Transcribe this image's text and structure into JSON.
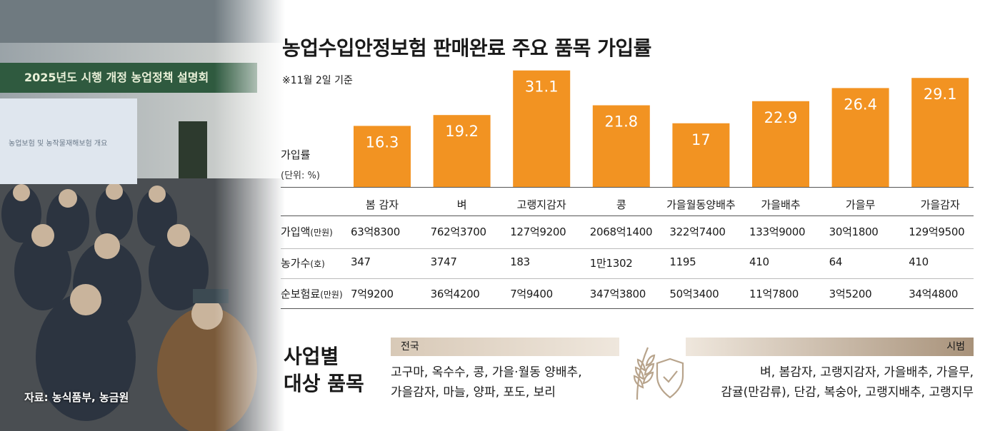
{
  "photo": {
    "banner_text": "2025년도 시행 개정 농업정책 설명회",
    "screen_text": "농업보험 및 농작물재해보험 개요",
    "caption": "자료: 농식품부, 농금원"
  },
  "header": {
    "title": "농업수입안정보험 판매완료 주요 품목 가입률",
    "note": "※11월 2일 기준"
  },
  "chart_data": {
    "type": "bar",
    "title": "농업수입안정보험 판매완료 주요 품목 가입률",
    "ylabel": "가입률",
    "yunit": "(단위: %)",
    "ylim": [
      0,
      32
    ],
    "categories": [
      "봄 감자",
      "벼",
      "고랭지감자",
      "콩",
      "가을월동양배추",
      "가을배추",
      "가을무",
      "가을감자"
    ],
    "values": [
      16.3,
      19.2,
      31.1,
      21.8,
      17,
      22.9,
      26.4,
      29.1
    ],
    "value_labels": [
      "16.3",
      "19.2",
      "31.1",
      "21.8",
      "17",
      "22.9",
      "26.4",
      "29.1"
    ],
    "bar_color": "#f29322"
  },
  "table": {
    "rows": [
      {
        "label": "가입액",
        "unit": "(만원)",
        "values": [
          "63억8300",
          "762억3700",
          "127억9200",
          "2068억1400",
          "322억7400",
          "133억9000",
          "30억1800",
          "129억9500"
        ]
      },
      {
        "label": "농가수",
        "unit": "(호)",
        "values": [
          "347",
          "3747",
          "183",
          "1만1302",
          "1195",
          "410",
          "64",
          "410"
        ]
      },
      {
        "label": "순보험료",
        "unit": "(만원)",
        "values": [
          "7억9200",
          "36억4200",
          "7억9400",
          "347억3800",
          "50억3400",
          "11억7800",
          "3억5200",
          "34억4800"
        ]
      }
    ]
  },
  "bottom": {
    "title_line1": "사업별",
    "title_line2": "대상 품목",
    "national_label": "전국",
    "national_line1": "고구마, 옥수수, 콩, 가을·월동 양배추,",
    "national_line2": "가을감자, 마늘, 양파, 포도, 보리",
    "pilot_label": "시범",
    "pilot_line1": "벼, 봄감자, 고랭지감자, 가을배추, 가을무,",
    "pilot_line2": "감귤(만감류), 단감, 복숭아, 고랭지배추, 고랭지무",
    "icon": "wheat-shield-icon"
  }
}
